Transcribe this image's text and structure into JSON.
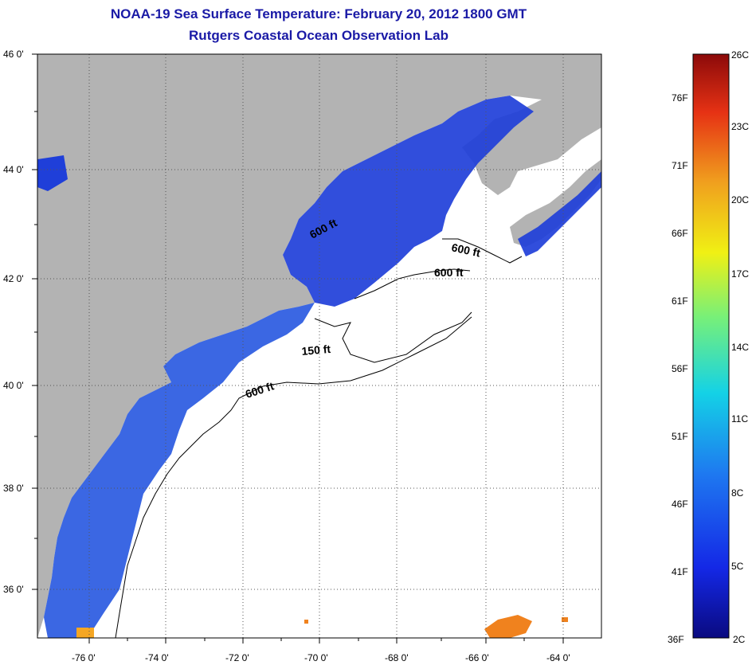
{
  "header": {
    "title": "NOAA-19 Sea Surface Temperature:  February 20, 2012 1800 GMT",
    "subtitle": "Rutgers Coastal Ocean Observation Lab"
  },
  "map": {
    "lat_ticks": [
      "46 0'",
      "44 0'",
      "42 0'",
      "40 0'",
      "38 0'",
      "36 0'"
    ],
    "lon_ticks": [
      "-76 0'",
      "-74 0'",
      "-72 0'",
      "-70 0'",
      "-68 0'",
      "-66 0'",
      "-64 0'"
    ],
    "contour_labels": [
      "600 ft",
      "600 ft",
      "600 ft",
      "150 ft",
      "600 ft"
    ],
    "colors": {
      "land": "#b3b3b3",
      "ocean_no_data": "#ffffff",
      "cold_water": "#1f3fd9",
      "warm_patch": "#f0821e"
    }
  },
  "colorbar": {
    "fahrenheit": [
      "76F",
      "71F",
      "66F",
      "61F",
      "56F",
      "51F",
      "46F",
      "41F",
      "36F"
    ],
    "celsius": [
      "26C",
      "23C",
      "20C",
      "17C",
      "14C",
      "11C",
      "8C",
      "5C",
      "2C"
    ],
    "colors": [
      "#0a0a80",
      "#1428e6",
      "#1e78f0",
      "#14d2e6",
      "#78f078",
      "#f0f014",
      "#f0a01e",
      "#e63214",
      "#8c0a0a"
    ]
  }
}
